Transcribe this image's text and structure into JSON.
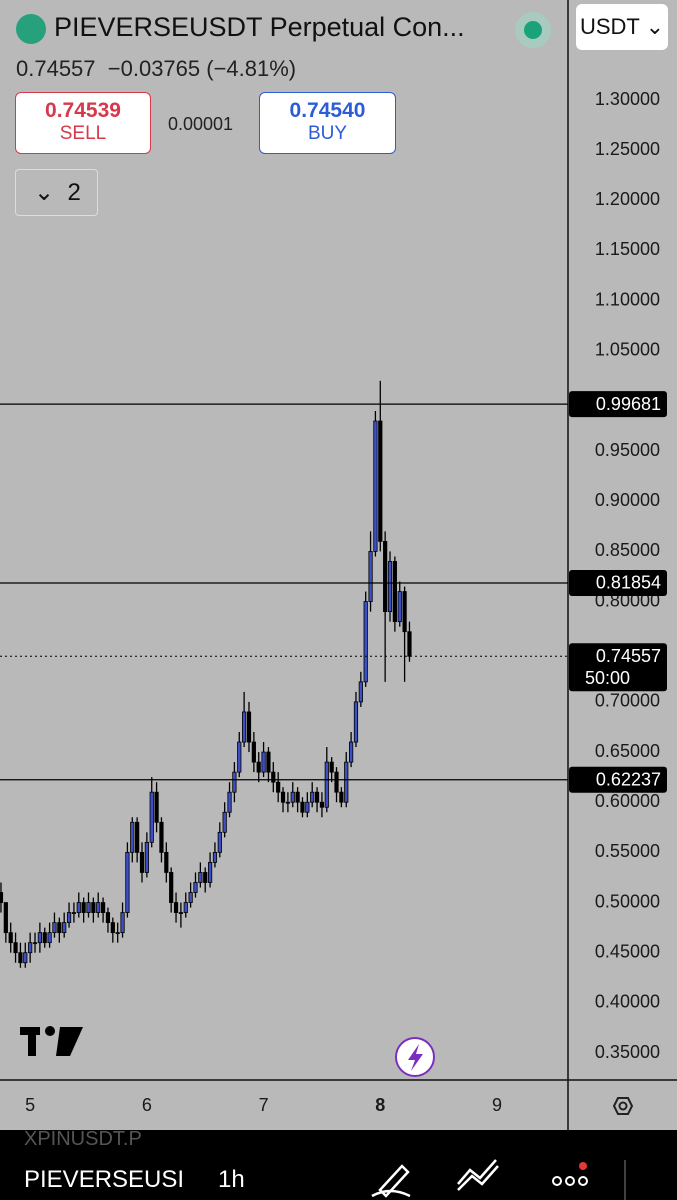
{
  "header": {
    "symbol_title": "PIEVERSEUSDT Perpetual Con...",
    "last": "0.74557",
    "change": "−0.03765 (−4.81%)",
    "sell_price": "0.74539",
    "sell_label": "SELL",
    "spread": "0.00001",
    "buy_price": "0.74540",
    "buy_label": "BUY",
    "collapsed_count": "2",
    "currency": "USDT"
  },
  "toolbar": {
    "faded_symbol": "XPINUSDT.P",
    "symbol": "PIEVERSEUSI",
    "interval": "1h"
  },
  "chart_data": {
    "type": "candlestick",
    "up_color": "#3d4fc4",
    "down_color": "#000000",
    "candles": [
      [
        0.51,
        0.52,
        0.49,
        0.5
      ],
      [
        0.5,
        0.5,
        0.46,
        0.47
      ],
      [
        0.47,
        0.48,
        0.45,
        0.46
      ],
      [
        0.46,
        0.47,
        0.44,
        0.45
      ],
      [
        0.45,
        0.46,
        0.435,
        0.44
      ],
      [
        0.44,
        0.46,
        0.435,
        0.45
      ],
      [
        0.45,
        0.47,
        0.44,
        0.46
      ],
      [
        0.46,
        0.47,
        0.45,
        0.46
      ],
      [
        0.46,
        0.48,
        0.45,
        0.47
      ],
      [
        0.47,
        0.475,
        0.455,
        0.46
      ],
      [
        0.46,
        0.48,
        0.455,
        0.47
      ],
      [
        0.47,
        0.49,
        0.465,
        0.48
      ],
      [
        0.48,
        0.485,
        0.46,
        0.47
      ],
      [
        0.47,
        0.49,
        0.465,
        0.48
      ],
      [
        0.48,
        0.5,
        0.475,
        0.49
      ],
      [
        0.49,
        0.5,
        0.48,
        0.49
      ],
      [
        0.49,
        0.51,
        0.485,
        0.5
      ],
      [
        0.5,
        0.505,
        0.48,
        0.49
      ],
      [
        0.49,
        0.51,
        0.485,
        0.5
      ],
      [
        0.5,
        0.505,
        0.48,
        0.49
      ],
      [
        0.49,
        0.51,
        0.485,
        0.5
      ],
      [
        0.5,
        0.505,
        0.48,
        0.49
      ],
      [
        0.49,
        0.495,
        0.47,
        0.48
      ],
      [
        0.48,
        0.485,
        0.46,
        0.47
      ],
      [
        0.47,
        0.48,
        0.46,
        0.47
      ],
      [
        0.47,
        0.5,
        0.465,
        0.49
      ],
      [
        0.49,
        0.56,
        0.485,
        0.55
      ],
      [
        0.55,
        0.585,
        0.54,
        0.58
      ],
      [
        0.58,
        0.585,
        0.54,
        0.55
      ],
      [
        0.55,
        0.56,
        0.52,
        0.53
      ],
      [
        0.53,
        0.57,
        0.525,
        0.56
      ],
      [
        0.56,
        0.625,
        0.555,
        0.61
      ],
      [
        0.61,
        0.62,
        0.57,
        0.58
      ],
      [
        0.58,
        0.585,
        0.54,
        0.55
      ],
      [
        0.55,
        0.56,
        0.52,
        0.53
      ],
      [
        0.53,
        0.535,
        0.49,
        0.5
      ],
      [
        0.5,
        0.51,
        0.48,
        0.49
      ],
      [
        0.49,
        0.5,
        0.475,
        0.49
      ],
      [
        0.49,
        0.51,
        0.485,
        0.5
      ],
      [
        0.5,
        0.52,
        0.495,
        0.51
      ],
      [
        0.51,
        0.53,
        0.505,
        0.52
      ],
      [
        0.52,
        0.54,
        0.515,
        0.53
      ],
      [
        0.53,
        0.535,
        0.51,
        0.52
      ],
      [
        0.52,
        0.55,
        0.515,
        0.54
      ],
      [
        0.54,
        0.56,
        0.535,
        0.55
      ],
      [
        0.55,
        0.58,
        0.545,
        0.57
      ],
      [
        0.57,
        0.6,
        0.565,
        0.59
      ],
      [
        0.59,
        0.62,
        0.585,
        0.61
      ],
      [
        0.61,
        0.64,
        0.6,
        0.63
      ],
      [
        0.63,
        0.67,
        0.625,
        0.66
      ],
      [
        0.66,
        0.71,
        0.655,
        0.69
      ],
      [
        0.69,
        0.7,
        0.65,
        0.66
      ],
      [
        0.66,
        0.67,
        0.63,
        0.64
      ],
      [
        0.64,
        0.65,
        0.62,
        0.63
      ],
      [
        0.63,
        0.66,
        0.625,
        0.65
      ],
      [
        0.65,
        0.655,
        0.62,
        0.63
      ],
      [
        0.63,
        0.64,
        0.61,
        0.62
      ],
      [
        0.62,
        0.63,
        0.6,
        0.61
      ],
      [
        0.61,
        0.615,
        0.59,
        0.6
      ],
      [
        0.6,
        0.61,
        0.59,
        0.6
      ],
      [
        0.6,
        0.62,
        0.595,
        0.61
      ],
      [
        0.61,
        0.615,
        0.59,
        0.6
      ],
      [
        0.6,
        0.605,
        0.585,
        0.59
      ],
      [
        0.59,
        0.61,
        0.585,
        0.6
      ],
      [
        0.6,
        0.62,
        0.595,
        0.61
      ],
      [
        0.61,
        0.615,
        0.59,
        0.6
      ],
      [
        0.6,
        0.61,
        0.585,
        0.595
      ],
      [
        0.595,
        0.655,
        0.59,
        0.64
      ],
      [
        0.64,
        0.645,
        0.62,
        0.63
      ],
      [
        0.63,
        0.635,
        0.6,
        0.61
      ],
      [
        0.61,
        0.615,
        0.595,
        0.6
      ],
      [
        0.6,
        0.65,
        0.595,
        0.64
      ],
      [
        0.64,
        0.67,
        0.635,
        0.66
      ],
      [
        0.66,
        0.71,
        0.655,
        0.7
      ],
      [
        0.7,
        0.73,
        0.695,
        0.72
      ],
      [
        0.72,
        0.81,
        0.715,
        0.8
      ],
      [
        0.8,
        0.87,
        0.79,
        0.85
      ],
      [
        0.85,
        0.99,
        0.845,
        0.98
      ],
      [
        0.98,
        1.02,
        0.85,
        0.86
      ],
      [
        0.86,
        0.87,
        0.72,
        0.79
      ],
      [
        0.79,
        0.85,
        0.78,
        0.84
      ],
      [
        0.84,
        0.845,
        0.77,
        0.78
      ],
      [
        0.78,
        0.82,
        0.775,
        0.81
      ],
      [
        0.81,
        0.815,
        0.72,
        0.77
      ],
      [
        0.77,
        0.78,
        0.74,
        0.74557
      ]
    ],
    "xlim": [
      -0.2,
      116.6
    ],
    "xticks": [
      {
        "value": 6,
        "label": "5"
      },
      {
        "value": 30,
        "label": "6"
      },
      {
        "value": 54,
        "label": "7"
      },
      {
        "value": 78,
        "label": "8"
      },
      {
        "value": 102,
        "label": "9"
      }
    ],
    "ylim": [
      0.3231,
      1.3997
    ],
    "yticks": [
      {
        "value": 1.3,
        "label": "1.30000"
      },
      {
        "value": 1.25,
        "label": "1.25000"
      },
      {
        "value": 1.2,
        "label": "1.20000"
      },
      {
        "value": 1.15,
        "label": "1.15000"
      },
      {
        "value": 1.1,
        "label": "1.10000"
      },
      {
        "value": 1.05,
        "label": "1.05000"
      },
      {
        "value": 0.95,
        "label": "0.95000"
      },
      {
        "value": 0.9,
        "label": "0.90000"
      },
      {
        "value": 0.85,
        "label": "0.85000"
      },
      {
        "value": 0.8,
        "label": "0.80000"
      },
      {
        "value": 0.7,
        "label": "0.70000"
      },
      {
        "value": 0.65,
        "label": "0.65000"
      },
      {
        "value": 0.6,
        "label": "0.60000"
      },
      {
        "value": 0.55,
        "label": "0.55000"
      },
      {
        "value": 0.5,
        "label": "0.50000"
      },
      {
        "value": 0.45,
        "label": "0.45000"
      },
      {
        "value": 0.4,
        "label": "0.40000"
      },
      {
        "value": 0.35,
        "label": "0.35000"
      }
    ],
    "levels": [
      0.99681,
      0.81854,
      0.62237
    ],
    "last_price": 0.74557,
    "countdown": "50:00"
  }
}
